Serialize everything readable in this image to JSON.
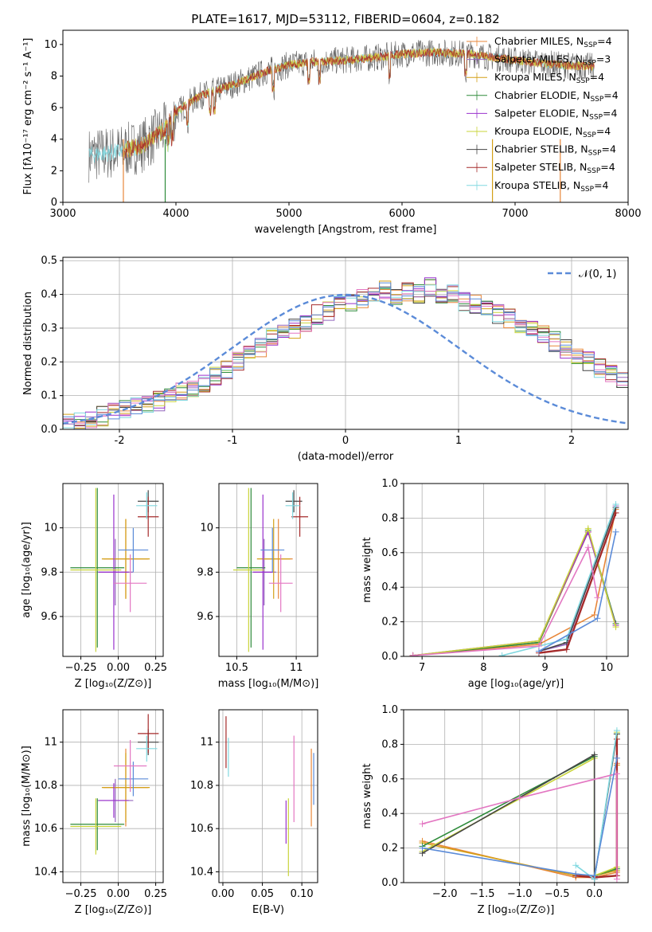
{
  "figure": {
    "title": "PLATE=1617, MJD=53112, FIBERID=0604, z=0.182"
  },
  "series_colors": {
    "Chabrier MILES": "#e8873a",
    "Salpeter MILES": "#9467bd",
    "Kroupa MILES": "#d4a017",
    "Chabrier ELODIE": "#2e8b3a",
    "Salpeter ELODIE": "#9a32cd",
    "Kroupa ELODIE": "#c9d43a",
    "Chabrier STELIB": "#444444",
    "Salpeter STELIB": "#a52a2a",
    "Kroupa STELIB": "#80d8e0",
    "normal": "#5b8bd8"
  },
  "chart_data": [
    {
      "id": "spectrum",
      "type": "line",
      "title": "PLATE=1617, MJD=53112, FIBERID=0604, z=0.182",
      "xlabel": "wavelength [Angstrom, rest frame]",
      "ylabel": "Flux [fλ10⁻¹⁷ erg cm⁻² s⁻¹ A⁻¹]",
      "xlim": [
        3000,
        8000
      ],
      "ylim": [
        0,
        10.9
      ],
      "xticks": [
        3000,
        4000,
        5000,
        6000,
        7000,
        8000
      ],
      "yticks": [
        0,
        2,
        4,
        6,
        8,
        10
      ],
      "legend_position": "upper right",
      "legend": [
        {
          "name": "Chabrier MILES",
          "nssp": "4"
        },
        {
          "name": "Salpeter MILES",
          "nssp": "3"
        },
        {
          "name": "Kroupa MILES",
          "nssp": "4"
        },
        {
          "name": "Chabrier ELODIE",
          "nssp": "4"
        },
        {
          "name": "Salpeter ELODIE",
          "nssp": "4"
        },
        {
          "name": "Kroupa ELODIE",
          "nssp": "4"
        },
        {
          "name": "Chabrier STELIB",
          "nssp": "4"
        },
        {
          "name": "Salpeter STELIB",
          "nssp": "4"
        },
        {
          "name": "Kroupa STELIB",
          "nssp": "4"
        }
      ],
      "continuum": {
        "x": [
          3230,
          3500,
          3700,
          3900,
          4000,
          4200,
          4400,
          4600,
          4800,
          5000,
          5200,
          5500,
          5800,
          6000,
          6300,
          6600,
          7000,
          7400,
          7700
        ],
        "y": [
          3.0,
          3.2,
          3.6,
          4.6,
          5.7,
          6.7,
          7.2,
          7.7,
          8.3,
          8.7,
          8.9,
          9.0,
          9.2,
          9.4,
          9.5,
          9.4,
          9.0,
          8.7,
          8.6
        ]
      }
    },
    {
      "id": "residuals",
      "type": "histogram",
      "xlabel": "(data-model)/error",
      "ylabel": "Normed distribution",
      "xlim": [
        -2.5,
        2.5
      ],
      "ylim": [
        0,
        0.51
      ],
      "xticks": [
        -2,
        -1,
        0,
        1,
        2
      ],
      "yticks": [
        0.0,
        0.1,
        0.2,
        0.3,
        0.4,
        0.5
      ],
      "legend_position": "upper right",
      "normal_label": "𝒩(0, 1)",
      "bin_edges_start": -2.5,
      "bin_width": 0.1,
      "envelope": [
        0.02,
        0.025,
        0.03,
        0.04,
        0.05,
        0.06,
        0.065,
        0.075,
        0.085,
        0.1,
        0.11,
        0.12,
        0.14,
        0.16,
        0.18,
        0.2,
        0.22,
        0.24,
        0.27,
        0.29,
        0.3,
        0.32,
        0.34,
        0.35,
        0.37,
        0.38,
        0.39,
        0.4,
        0.41,
        0.4,
        0.41,
        0.4,
        0.42,
        0.39,
        0.4,
        0.38,
        0.37,
        0.35,
        0.34,
        0.33,
        0.31,
        0.3,
        0.28,
        0.26,
        0.24,
        0.22,
        0.2,
        0.18,
        0.16,
        0.15
      ]
    },
    {
      "id": "age-vs-Z",
      "type": "errorbar",
      "xlabel": "Z [log₁₀(Z/Z⊙)]",
      "ylabel": "age  [log₁₀(age/yr)]",
      "xlim": [
        -0.37,
        0.3
      ],
      "ylim": [
        9.42,
        10.2
      ],
      "xticks": [
        -0.25,
        0.0,
        0.25
      ],
      "xticklabels": [
        "−0.25",
        "0.00",
        "0.25"
      ],
      "yticks": [
        9.6,
        9.8,
        10.0
      ],
      "points": [
        {
          "series": "Chabrier MILES",
          "x": 0.05,
          "xerr": 0.15,
          "y": 9.86,
          "yerr": 0.18
        },
        {
          "series": "Salpeter MILES",
          "x": -0.02,
          "xerr": 0.12,
          "y": 9.8,
          "yerr": 0.15
        },
        {
          "series": "Kroupa MILES",
          "x": 0.05,
          "xerr": 0.16,
          "y": 9.86,
          "yerr": 0.18
        },
        {
          "series": "Chabrier ELODIE",
          "x": -0.14,
          "xerr": 0.18,
          "y": 9.82,
          "yerr": 0.36
        },
        {
          "series": "Salpeter ELODIE",
          "x": -0.03,
          "xerr": 0.1,
          "y": 9.8,
          "yerr": 0.35
        },
        {
          "series": "Kroupa ELODIE",
          "x": -0.15,
          "xerr": 0.17,
          "y": 9.81,
          "yerr": 0.37
        },
        {
          "series": "Chabrier STELIB",
          "x": 0.2,
          "xerr": 0.07,
          "y": 10.12,
          "yerr": 0.05
        },
        {
          "series": "Salpeter STELIB",
          "x": 0.2,
          "xerr": 0.07,
          "y": 10.05,
          "yerr": 0.09
        },
        {
          "series": "Kroupa STELIB",
          "x": 0.19,
          "xerr": 0.07,
          "y": 10.1,
          "yerr": 0.06
        },
        {
          "series": "Normal blue",
          "x": 0.1,
          "xerr": 0.1,
          "y": 9.9,
          "yerr": 0.1
        },
        {
          "series": "Pink",
          "x": 0.08,
          "xerr": 0.11,
          "y": 9.75,
          "yerr": 0.13
        }
      ]
    },
    {
      "id": "age-vs-mass",
      "type": "errorbar",
      "xlabel": "mass [log₁₀(M/M⊙)]",
      "xlim": [
        10.35,
        11.18
      ],
      "ylim": [
        9.42,
        10.2
      ],
      "xticks": [
        10.5,
        11.0
      ],
      "yticks": [
        9.6,
        9.8,
        10.0
      ],
      "points": [
        {
          "series": "Chabrier MILES",
          "x": 10.85,
          "xerr": 0.12,
          "y": 9.86,
          "yerr": 0.18
        },
        {
          "series": "Salpeter MILES",
          "x": 10.73,
          "xerr": 0.1,
          "y": 9.8,
          "yerr": 0.15
        },
        {
          "series": "Kroupa MILES",
          "x": 10.81,
          "xerr": 0.14,
          "y": 9.86,
          "yerr": 0.18
        },
        {
          "series": "Chabrier ELODIE",
          "x": 10.62,
          "xerr": 0.12,
          "y": 9.82,
          "yerr": 0.36
        },
        {
          "series": "Salpeter ELODIE",
          "x": 10.72,
          "xerr": 0.08,
          "y": 9.8,
          "yerr": 0.35
        },
        {
          "series": "Kroupa ELODIE",
          "x": 10.6,
          "xerr": 0.13,
          "y": 9.81,
          "yerr": 0.37
        },
        {
          "series": "Chabrier STELIB",
          "x": 10.98,
          "xerr": 0.07,
          "y": 10.12,
          "yerr": 0.05
        },
        {
          "series": "Salpeter STELIB",
          "x": 11.03,
          "xerr": 0.07,
          "y": 10.05,
          "yerr": 0.09
        },
        {
          "series": "Kroupa STELIB",
          "x": 10.97,
          "xerr": 0.06,
          "y": 10.1,
          "yerr": 0.06
        },
        {
          "series": "Normal blue",
          "x": 10.8,
          "xerr": 0.1,
          "y": 9.9,
          "yerr": 0.1
        },
        {
          "series": "Pink",
          "x": 10.87,
          "xerr": 0.1,
          "y": 9.75,
          "yerr": 0.13
        }
      ]
    },
    {
      "id": "mass-weight-vs-age",
      "type": "line",
      "xlabel": "age  [log₁₀(age/yr)]",
      "ylabel": "mass weight",
      "xlim": [
        6.7,
        10.35
      ],
      "ylim": [
        0,
        1.0
      ],
      "xticks": [
        7,
        8,
        9,
        10
      ],
      "yticks": [
        0.0,
        0.2,
        0.4,
        0.6,
        0.8,
        1.0
      ],
      "series": [
        {
          "name": "Chabrier MILES",
          "x": [
            6.85,
            8.9,
            9.8,
            10.15
          ],
          "y": [
            0.005,
            0.07,
            0.24,
            0.85
          ]
        },
        {
          "name": "Salpeter MILES",
          "x": [
            8.9,
            9.35,
            10.15
          ],
          "y": [
            0.03,
            0.07,
            0.87
          ]
        },
        {
          "name": "Kroupa MILES",
          "x": [
            6.85,
            8.9,
            9.7,
            10.15
          ],
          "y": [
            0.005,
            0.08,
            0.72,
            0.18
          ]
        },
        {
          "name": "Chabrier ELODIE",
          "x": [
            6.85,
            8.9,
            9.7,
            10.15
          ],
          "y": [
            0.005,
            0.08,
            0.73,
            0.19
          ]
        },
        {
          "name": "Salpeter ELODIE",
          "x": [
            6.85,
            8.9,
            9.7,
            10.15
          ],
          "y": [
            0.005,
            0.09,
            0.72,
            0.18
          ]
        },
        {
          "name": "Kroupa ELODIE",
          "x": [
            6.85,
            8.9,
            9.7,
            10.15
          ],
          "y": [
            0.005,
            0.09,
            0.74,
            0.17
          ]
        },
        {
          "name": "Chabrier STELIB",
          "x": [
            8.9,
            9.35,
            10.15
          ],
          "y": [
            0.03,
            0.08,
            0.86
          ]
        },
        {
          "name": "Salpeter STELIB",
          "x": [
            8.9,
            9.35,
            10.15
          ],
          "y": [
            0.02,
            0.04,
            0.83
          ]
        },
        {
          "name": "Kroupa STELIB",
          "x": [
            8.3,
            9.35,
            10.15
          ],
          "y": [
            0.005,
            0.1,
            0.88
          ]
        },
        {
          "name": "Pink",
          "x": [
            6.85,
            8.9,
            9.7,
            9.85
          ],
          "y": [
            0.005,
            0.06,
            0.63,
            0.34
          ]
        },
        {
          "name": "Normal blue",
          "x": [
            8.9,
            9.85,
            10.15
          ],
          "y": [
            0.03,
            0.22,
            0.72
          ]
        }
      ]
    },
    {
      "id": "mass-vs-Z",
      "type": "errorbar",
      "xlabel": "Z [log₁₀(Z/Z⊙)]",
      "ylabel": "mass [log₁₀(M/M⊙)]",
      "xlim": [
        -0.37,
        0.3
      ],
      "ylim": [
        10.35,
        11.15
      ],
      "xticks": [
        -0.25,
        0.0,
        0.25
      ],
      "xticklabels": [
        "−0.25",
        "0.00",
        "0.25"
      ],
      "yticks": [
        10.4,
        10.6,
        10.8,
        11.0
      ],
      "points": [
        {
          "series": "Chabrier MILES",
          "x": 0.05,
          "xerr": 0.15,
          "y": 10.79,
          "yerr": 0.18
        },
        {
          "series": "Salpeter MILES",
          "x": -0.02,
          "xerr": 0.12,
          "y": 10.73,
          "yerr": 0.1
        },
        {
          "series": "Kroupa MILES",
          "x": 0.05,
          "xerr": 0.16,
          "y": 10.79,
          "yerr": 0.16
        },
        {
          "series": "Chabrier ELODIE",
          "x": -0.14,
          "xerr": 0.18,
          "y": 10.62,
          "yerr": 0.12
        },
        {
          "series": "Salpeter ELODIE",
          "x": -0.03,
          "xerr": 0.1,
          "y": 10.73,
          "yerr": 0.08
        },
        {
          "series": "Kroupa ELODIE",
          "x": -0.15,
          "xerr": 0.17,
          "y": 10.61,
          "yerr": 0.13
        },
        {
          "series": "Chabrier STELIB",
          "x": 0.2,
          "xerr": 0.07,
          "y": 11.0,
          "yerr": 0.06
        },
        {
          "series": "Salpeter STELIB",
          "x": 0.2,
          "xerr": 0.07,
          "y": 11.04,
          "yerr": 0.09
        },
        {
          "series": "Kroupa STELIB",
          "x": 0.19,
          "xerr": 0.07,
          "y": 10.97,
          "yerr": 0.06
        },
        {
          "series": "Normal blue",
          "x": 0.1,
          "xerr": 0.1,
          "y": 10.83,
          "yerr": 0.08
        },
        {
          "series": "Pink",
          "x": 0.08,
          "xerr": 0.11,
          "y": 10.89,
          "yerr": 0.12
        }
      ]
    },
    {
      "id": "mass-vs-ebv",
      "type": "errorbar",
      "xlabel": "E(B-V)",
      "xlim": [
        -0.005,
        0.12
      ],
      "ylim": [
        10.35,
        11.15
      ],
      "xticks": [
        0.0,
        0.05,
        0.1
      ],
      "xticklabels": [
        "0.00",
        "0.05",
        "0.10"
      ],
      "yticks": [
        10.4,
        10.6,
        10.8,
        11.0
      ],
      "points": [
        {
          "series": "Salpeter STELIB",
          "x": 0.004,
          "xerr": 0,
          "y": 11.0,
          "yerr": 0.12
        },
        {
          "series": "Kroupa STELIB",
          "x": 0.007,
          "xerr": 0,
          "y": 10.93,
          "yerr": 0.09
        },
        {
          "series": "Salpeter ELODIE",
          "x": 0.08,
          "xerr": 0,
          "y": 10.63,
          "yerr": 0.1
        },
        {
          "series": "Kroupa ELODIE",
          "x": 0.083,
          "xerr": 0,
          "y": 10.56,
          "yerr": 0.18
        },
        {
          "series": "Pink",
          "x": 0.09,
          "xerr": 0,
          "y": 10.83,
          "yerr": 0.2
        },
        {
          "series": "Chabrier MILES",
          "x": 0.112,
          "xerr": 0,
          "y": 10.79,
          "yerr": 0.18
        },
        {
          "series": "Normal blue",
          "x": 0.115,
          "xerr": 0,
          "y": 10.83,
          "yerr": 0.12
        }
      ]
    },
    {
      "id": "mass-weight-vs-Z",
      "type": "line",
      "xlabel": "Z [log₁₀(Z/Z⊙)]",
      "ylabel": "mass weight",
      "xlim": [
        -2.55,
        0.45
      ],
      "ylim": [
        0,
        1.0
      ],
      "xticks": [
        -2.0,
        -1.5,
        -1.0,
        -0.5,
        0.0
      ],
      "xticklabels": [
        "−2.0",
        "−1.5",
        "−1.0",
        "−0.5",
        "0.0"
      ],
      "yticks": [
        0.0,
        0.2,
        0.4,
        0.6,
        0.8,
        1.0
      ],
      "series": [
        {
          "name": "Chabrier MILES",
          "x": [
            -2.3,
            -0.25,
            0.0,
            0.3,
            0.3
          ],
          "y": [
            0.24,
            0.03,
            0.03,
            0.06,
            0.69
          ]
        },
        {
          "name": "Kroupa MILES",
          "x": [
            -2.3,
            -0.25,
            0.0,
            0.3,
            0.3
          ],
          "y": [
            0.23,
            0.04,
            0.04,
            0.07,
            0.68
          ]
        },
        {
          "name": "Chabrier ELODIE",
          "x": [
            -2.3,
            0.0,
            0.0,
            0.3,
            0.3
          ],
          "y": [
            0.21,
            0.73,
            0.04,
            0.08,
            0.86
          ]
        },
        {
          "name": "Kroupa ELODIE",
          "x": [
            -2.3,
            0.0,
            0.0,
            0.3,
            0.3
          ],
          "y": [
            0.18,
            0.72,
            0.04,
            0.09,
            0.87
          ]
        },
        {
          "name": "Chabrier STELIB",
          "x": [
            -2.3,
            0.0,
            0.0,
            0.3
          ],
          "y": [
            0.17,
            0.74,
            0.02,
            0.86
          ]
        },
        {
          "name": "Salpeter STELIB",
          "x": [
            -0.25,
            0.0,
            0.3,
            0.3
          ],
          "y": [
            0.04,
            0.03,
            0.04,
            0.83
          ]
        },
        {
          "name": "Kroupa STELIB",
          "x": [
            -0.25,
            0.0,
            0.3
          ],
          "y": [
            0.1,
            0.02,
            0.88
          ]
        },
        {
          "name": "Pink",
          "x": [
            -2.3,
            -1.0,
            0.3,
            0.3
          ],
          "y": [
            0.34,
            0.49,
            0.63,
            0.02
          ]
        },
        {
          "name": "Normal blue",
          "x": [
            -2.3,
            -0.25,
            0.0,
            0.3
          ],
          "y": [
            0.2,
            0.05,
            0.04,
            0.72
          ]
        }
      ]
    }
  ]
}
